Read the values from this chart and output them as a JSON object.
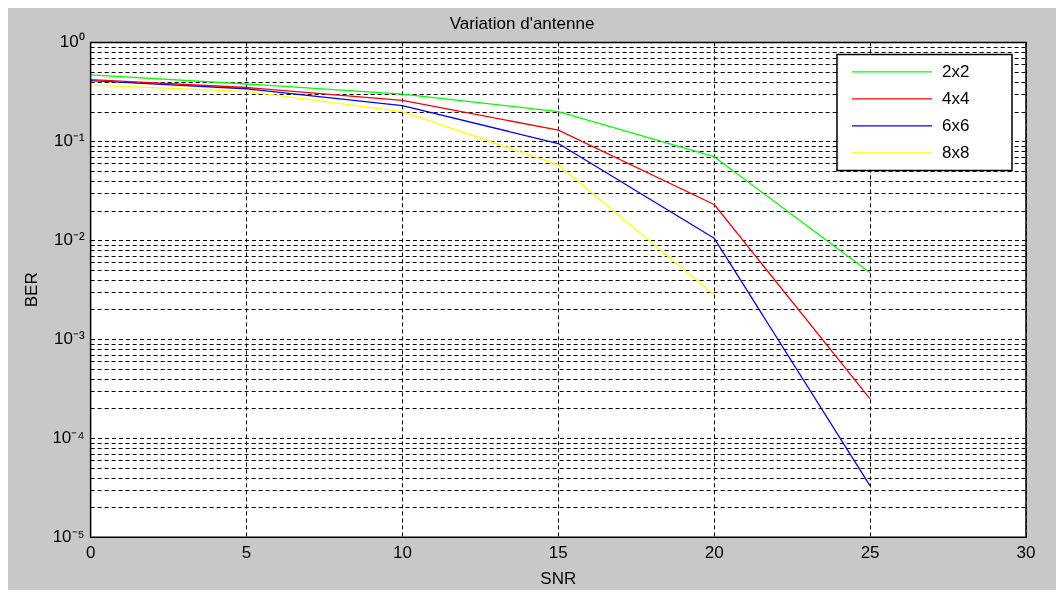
{
  "chart_data": {
    "type": "line",
    "title": "Variation d'antenne",
    "xlabel": "SNR",
    "ylabel": "BER",
    "x": [
      0,
      5,
      10,
      15,
      20,
      25
    ],
    "series": [
      {
        "name": "2x2",
        "color": "#00ff00",
        "values": [
          0.47,
          0.38,
          0.3,
          0.2,
          0.07,
          0.0047
        ]
      },
      {
        "name": "4x4",
        "color": "#ff0000",
        "values": [
          0.42,
          0.35,
          0.26,
          0.13,
          0.023,
          0.00025
        ]
      },
      {
        "name": "6x6",
        "color": "#0000ff",
        "values": [
          0.41,
          0.34,
          0.23,
          0.095,
          0.0105,
          3.3e-05
        ]
      },
      {
        "name": "8x8",
        "color": "#ffff00",
        "values": [
          0.37,
          0.32,
          0.2,
          0.058,
          0.0028,
          null
        ]
      }
    ],
    "xlim": [
      0,
      30
    ],
    "xticks": [
      0,
      5,
      10,
      15,
      20,
      25,
      30
    ],
    "ylim": [
      1e-05,
      1
    ],
    "yticks": [
      {
        "value": 1e-05,
        "label": "10⁻⁵"
      },
      {
        "value": 0.0001,
        "label": "10⁻⁴"
      },
      {
        "value": 0.001,
        "label": "10⁻³"
      },
      {
        "value": 0.01,
        "label": "10⁻²"
      },
      {
        "value": 0.1,
        "label": "10⁻¹"
      },
      {
        "value": 1,
        "label": "10⁰"
      }
    ],
    "log": "y",
    "grid": true,
    "legend": "top right",
    "marker": "none",
    "line_style": "solid"
  }
}
